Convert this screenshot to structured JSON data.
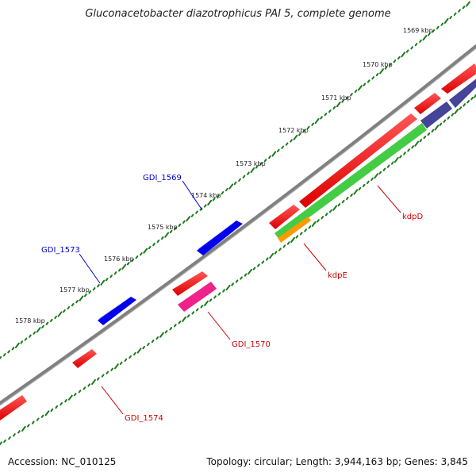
{
  "title": "Gluconacetobacter diazotrophicus PAI 5, complete genome",
  "footer": {
    "accession": "Accession: NC_010125",
    "summary": "Topology: circular; Length: 3,944,163 bp; Genes: 3,845"
  },
  "ticks": [
    {
      "label": "1569 kbp",
      "kbp": 1569
    },
    {
      "label": "1570 kbp",
      "kbp": 1570
    },
    {
      "label": "1571 kbp",
      "kbp": 1571
    },
    {
      "label": "1572 kbp",
      "kbp": 1572
    },
    {
      "label": "1573 kbp",
      "kbp": 1573
    },
    {
      "label": "1574 kbp",
      "kbp": 1574
    },
    {
      "label": "1575 kbp",
      "kbp": 1575
    },
    {
      "label": "1576 kbp",
      "kbp": 1576
    },
    {
      "label": "1577 kbp",
      "kbp": 1577
    },
    {
      "label": "1578 kbp",
      "kbp": 1578
    }
  ],
  "gene_labels": [
    {
      "name": "kdpD",
      "color": "#cc0000",
      "strand": "reverse"
    },
    {
      "name": "kdpE",
      "color": "#cc0000",
      "strand": "reverse"
    },
    {
      "name": "GDI_1570",
      "color": "#cc0000",
      "strand": "reverse"
    },
    {
      "name": "GDI_1574",
      "color": "#cc0000",
      "strand": "reverse"
    },
    {
      "name": "GDI_1569",
      "color": "#0000cc",
      "strand": "forward"
    },
    {
      "name": "GDI_1573",
      "color": "#0000cc",
      "strand": "forward"
    }
  ],
  "colors": {
    "backbone": "#808080",
    "ticks": "#1a7a1a",
    "forward_gene": "#0000ee",
    "reverse_gene": "#ee0000",
    "green_track": "#44cc44",
    "orange_track": "#ff9900",
    "purple_track": "#444499",
    "magenta_track": "#ee2288"
  }
}
